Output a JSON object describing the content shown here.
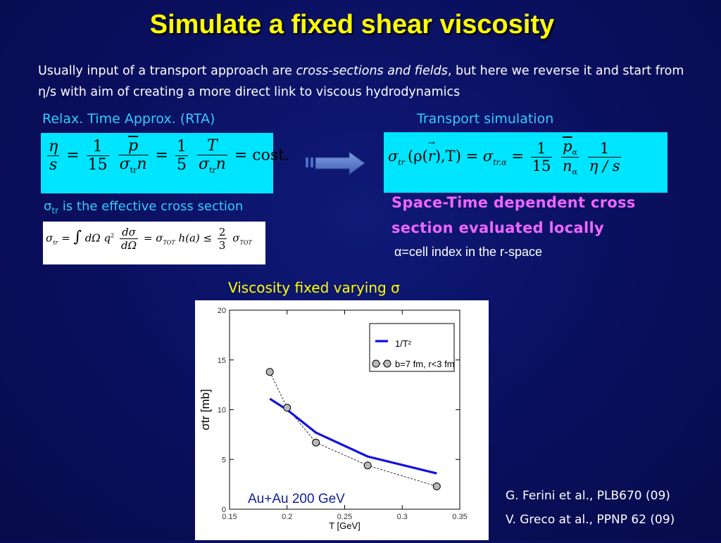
{
  "slide": {
    "title": "Simulate a fixed shear viscosity",
    "intro_1": "Usually input of a transport approach are ",
    "intro_italic": "cross-sections and fields",
    "intro_2": ", but here we reverse it and start from η/s with aim of creating a more direct link to viscous hydrodynamics",
    "rta_heading": "Relax. Time Approx. (RTA)",
    "transport_heading": "Transport simulation",
    "sigma_tr_note_symbol": "σ",
    "sigma_tr_note_sub": "tr",
    "sigma_tr_note_text": " is the effective cross section",
    "space_time_text": "Space-Time dependent cross section evaluated locally",
    "alpha_symbol": "α",
    "alpha_text": "=cell index in the r-space",
    "viscosity_caption": "Viscosity  fixed varying σ",
    "colors": {
      "background": "#0b1060",
      "title": "#ffff00",
      "subheading": "#33ccff",
      "magenta": "#ee66ff",
      "formula_box": "#00e5ff"
    }
  },
  "equations": {
    "rta": {
      "eta": "η",
      "s": "s",
      "eq": "=",
      "one": "1",
      "fifteen": "15",
      "five": "5",
      "p": "p",
      "sigma": "σ",
      "tr": "tr",
      "n": "n",
      "T": "T",
      "const": "cost."
    },
    "transport": {
      "lhs_sigma": "σ",
      "lhs_tr": "tr",
      "lhs_args": "(ρ(",
      "r": "r",
      "lhs_args2": "),T)",
      "eq": "=",
      "sigma": "σ",
      "tr_alpha": "tr,α",
      "one": "1",
      "fifteen": "15",
      "p": "p",
      "n": "n",
      "alpha": "α",
      "eta_s": "η / s"
    },
    "sigma_tr_def": {
      "sigma": "σ",
      "tr": "tr",
      "eq": "=",
      "integral": "∫",
      "dOmega": "dΩ",
      "q2": "q",
      "sq": "2",
      "dsigma": "dσ",
      "TOT": "TOT",
      "h": "h(a)",
      "le": "≤",
      "two": "2",
      "three": "3"
    }
  },
  "chart_data": {
    "type": "line",
    "xlabel": "T [GeV]",
    "ylabel": "σtr  [mb]",
    "xlim": [
      0.15,
      0.35
    ],
    "ylim": [
      0,
      20
    ],
    "xticks": [
      "0.15",
      "0.2",
      "0.25",
      "0.3",
      "0.35"
    ],
    "yticks": [
      "0",
      "5",
      "10",
      "15",
      "20"
    ],
    "annotation": "Au+Au 200 GeV",
    "legend_position": "top-right",
    "series": [
      {
        "name": "1/T²",
        "style": "line",
        "color": "#1010e0",
        "x": [
          0.185,
          0.2,
          0.225,
          0.27,
          0.33
        ],
        "y": [
          11.1,
          10.0,
          7.7,
          5.3,
          3.6
        ]
      },
      {
        "name": "b=7 fm, r<3 fm",
        "style": "dashed-markers",
        "color": "#000000",
        "x": [
          0.185,
          0.2,
          0.225,
          0.27,
          0.33
        ],
        "y": [
          13.8,
          10.2,
          6.7,
          4.4,
          2.3
        ]
      }
    ]
  },
  "references": {
    "ref1": "G. Ferini et al., PLB670 (09)",
    "ref2": "V. Greco at al., PPNP 62 (09)"
  }
}
